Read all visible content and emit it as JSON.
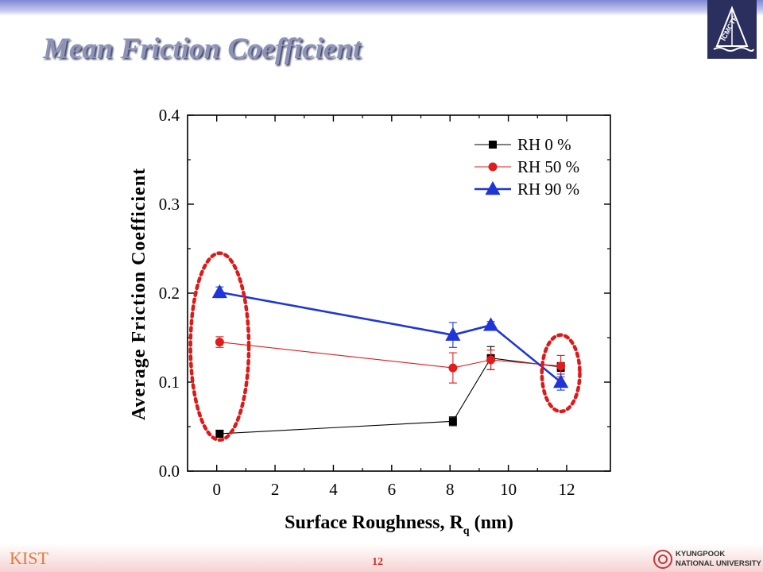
{
  "slide": {
    "title": "Mean Friction Coefficient",
    "page_number": "12",
    "logo_text": "ICMCTF",
    "footer_left_logo": "KIST",
    "footer_right_logo_lines": [
      "KYUNGPOOK",
      "NATIONAL UNIVERSITY"
    ],
    "colors": {
      "title": "#8d93b8",
      "top_band": "#7f86d6",
      "page_number": "#cc2a22",
      "highlight_ellipse": "#dd1a1a"
    }
  },
  "chart_data": {
    "type": "line",
    "xlabel_main": "Surface Roughness, R",
    "xlabel_sub": "q",
    "xlabel_unit": " (nm)",
    "ylabel": "Average Friction Coefficient",
    "xlim": [
      -1,
      13.5
    ],
    "ylim": [
      0,
      0.4
    ],
    "xticks": [
      "0",
      "2",
      "4",
      "6",
      "8",
      "10",
      "12"
    ],
    "yticks": [
      "0.0",
      "0.1",
      "0.2",
      "0.3",
      "0.4"
    ],
    "legend_position": "top-right",
    "series": [
      {
        "name": "RH 0 %",
        "color": "#000000",
        "marker": "square",
        "x": [
          0.1,
          8.1,
          9.4,
          11.8
        ],
        "y": [
          0.042,
          0.056,
          0.127,
          0.117
        ],
        "err": [
          0.004,
          0.005,
          0.013,
          0.005
        ]
      },
      {
        "name": "RH 50 %",
        "color": "#e21b1b",
        "marker": "circle",
        "x": [
          0.1,
          8.1,
          9.4,
          11.8
        ],
        "y": [
          0.145,
          0.116,
          0.125,
          0.118
        ],
        "err": [
          0.006,
          0.017,
          0.011,
          0.012
        ]
      },
      {
        "name": "RH 90 %",
        "color": "#1f35d8",
        "marker": "triangle",
        "x": [
          0.1,
          8.1,
          9.4,
          11.8
        ],
        "y": [
          0.201,
          0.153,
          0.164,
          0.1
        ],
        "err": [
          0.006,
          0.014,
          0.004,
          0.009
        ]
      }
    ],
    "annotations": [
      {
        "shape": "dashed-ellipse",
        "color": "#dd1a1a",
        "cx": 0.1,
        "cy": 0.14,
        "rx": 1.0,
        "ry": 0.105
      },
      {
        "shape": "dashed-ellipse",
        "color": "#dd1a1a",
        "cx": 11.8,
        "cy": 0.11,
        "rx": 0.65,
        "ry": 0.043
      }
    ]
  }
}
